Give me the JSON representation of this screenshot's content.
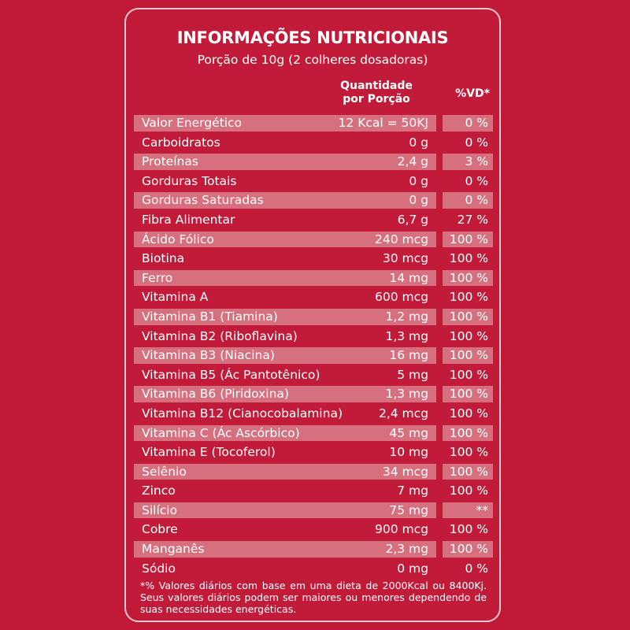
{
  "header": {
    "title": "INFORMAÇÕES NUTRICIONAIS",
    "subtitle": "Porção de 10g (2 colheres dosadoras)",
    "col_qty_line1": "Quantidade",
    "col_qty_line2": "por Porção",
    "col_vd": "%VD*"
  },
  "rows": [
    {
      "name": "Valor Energético",
      "qty": "12 Kcal = 50KJ",
      "vd": "0 %"
    },
    {
      "name": "Carboidratos",
      "qty": "0 g",
      "vd": "0 %"
    },
    {
      "name": "Proteínas",
      "qty": "2,4 g",
      "vd": "3 %"
    },
    {
      "name": "Gorduras Totais",
      "qty": "0 g",
      "vd": "0 %"
    },
    {
      "name": "Gorduras Saturadas",
      "qty": "0 g",
      "vd": "0 %"
    },
    {
      "name": "Fibra Alimentar",
      "qty": "6,7 g",
      "vd": "27 %"
    },
    {
      "name": "Ácido Fólico",
      "qty": "240 mcg",
      "vd": "100 %"
    },
    {
      "name": "Biotina",
      "qty": "30 mcg",
      "vd": "100 %"
    },
    {
      "name": "Ferro",
      "qty": "14 mg",
      "vd": "100 %"
    },
    {
      "name": "Vitamina A",
      "qty": "600 mcg",
      "vd": "100 %"
    },
    {
      "name": "Vitamina B1 (Tiamina)",
      "qty": "1,2 mg",
      "vd": "100 %"
    },
    {
      "name": "Vitamina B2 (Riboflavina)",
      "qty": "1,3 mg",
      "vd": "100 %"
    },
    {
      "name": "Vitamina B3 (Niacina)",
      "qty": "16 mg",
      "vd": "100 %"
    },
    {
      "name": "Vitamina B5 (Ác Pantotênico)",
      "qty": "5 mg",
      "vd": "100 %"
    },
    {
      "name": "Vitamina B6 (Piridoxina)",
      "qty": "1,3 mg",
      "vd": "100 %"
    },
    {
      "name": "Vitamina B12 (Cianocobalamina)",
      "qty": "2,4 mcg",
      "vd": "100 %"
    },
    {
      "name": "Vitamina C (Ác Ascórbico)",
      "qty": "45 mg",
      "vd": "100 %"
    },
    {
      "name": "Vitamina E (Tocoferol)",
      "qty": "10 mg",
      "vd": "100 %"
    },
    {
      "name": "Selênio",
      "qty": "34 mcg",
      "vd": "100 %"
    },
    {
      "name": "Zinco",
      "qty": "7 mg",
      "vd": "100 %"
    },
    {
      "name": "Silício",
      "qty": "75 mg",
      "vd": "**"
    },
    {
      "name": "Cobre",
      "qty": "900 mcg",
      "vd": "100 %"
    },
    {
      "name": "Manganês",
      "qty": "2,3 mg",
      "vd": "100 %"
    },
    {
      "name": "Sódio",
      "qty": "0 mg",
      "vd": "0 %"
    }
  ],
  "footnote": "*% Valores diários com base em uma dieta de 2000Kcal ou 8400Kj. Seus valores diários podem ser maiores ou menores dependendo de suas necessidades energéticas."
}
